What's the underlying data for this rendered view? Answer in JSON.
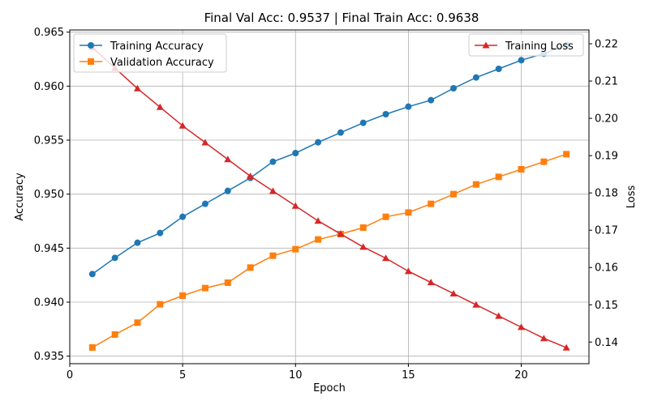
{
  "chart_data": {
    "type": "line",
    "title": "Final Val Acc: 0.9537 | Final Train Acc: 0.9638",
    "xlabel": "Epoch",
    "ylabel_left": "Accuracy",
    "ylabel_right": "Loss",
    "xlim": [
      0,
      23
    ],
    "ylim_left": [
      0.9343,
      0.9652
    ],
    "ylim_right": [
      0.1342,
      0.2237
    ],
    "x_ticks": [
      0,
      5,
      10,
      15,
      20
    ],
    "y_ticks_left": [
      0.935,
      0.94,
      0.945,
      0.95,
      0.955,
      0.96,
      0.965
    ],
    "y_ticks_right": [
      0.14,
      0.15,
      0.16,
      0.17,
      0.18,
      0.19,
      0.2,
      0.21,
      0.22
    ],
    "grid": true,
    "legend_left_placement": "top-left",
    "legend_right_placement": "top-right",
    "x": [
      1,
      2,
      3,
      4,
      5,
      6,
      7,
      8,
      9,
      10,
      11,
      12,
      13,
      14,
      15,
      16,
      17,
      18,
      19,
      20,
      21,
      22
    ],
    "series": [
      {
        "name": "Training Accuracy",
        "axis": "left",
        "color": "#1f77b4",
        "marker": "circle",
        "values": [
          0.9426,
          0.9441,
          0.9455,
          0.9464,
          0.9479,
          0.9491,
          0.9503,
          0.9515,
          0.953,
          0.9538,
          0.9548,
          0.9557,
          0.9566,
          0.9574,
          0.9581,
          0.9587,
          0.9598,
          0.9608,
          0.9616,
          0.9624,
          0.963,
          0.9638
        ]
      },
      {
        "name": "Validation Accuracy",
        "axis": "left",
        "color": "#ff7f0e",
        "marker": "square",
        "values": [
          0.9358,
          0.937,
          0.9381,
          0.9398,
          0.9406,
          0.9413,
          0.9418,
          0.9432,
          0.9443,
          0.9449,
          0.9458,
          0.9463,
          0.9469,
          0.9479,
          0.9483,
          0.9491,
          0.95,
          0.9509,
          0.9516,
          0.9523,
          0.953,
          0.9537
        ]
      },
      {
        "name": "Training Loss",
        "axis": "right",
        "color": "#d62728",
        "marker": "triangle",
        "values": [
          0.219,
          0.2135,
          0.208,
          0.203,
          0.198,
          0.1935,
          0.189,
          0.1845,
          0.1805,
          0.1765,
          0.1725,
          0.169,
          0.1655,
          0.1625,
          0.159,
          0.156,
          0.153,
          0.15,
          0.147,
          0.144,
          0.141,
          0.1385
        ]
      }
    ]
  }
}
